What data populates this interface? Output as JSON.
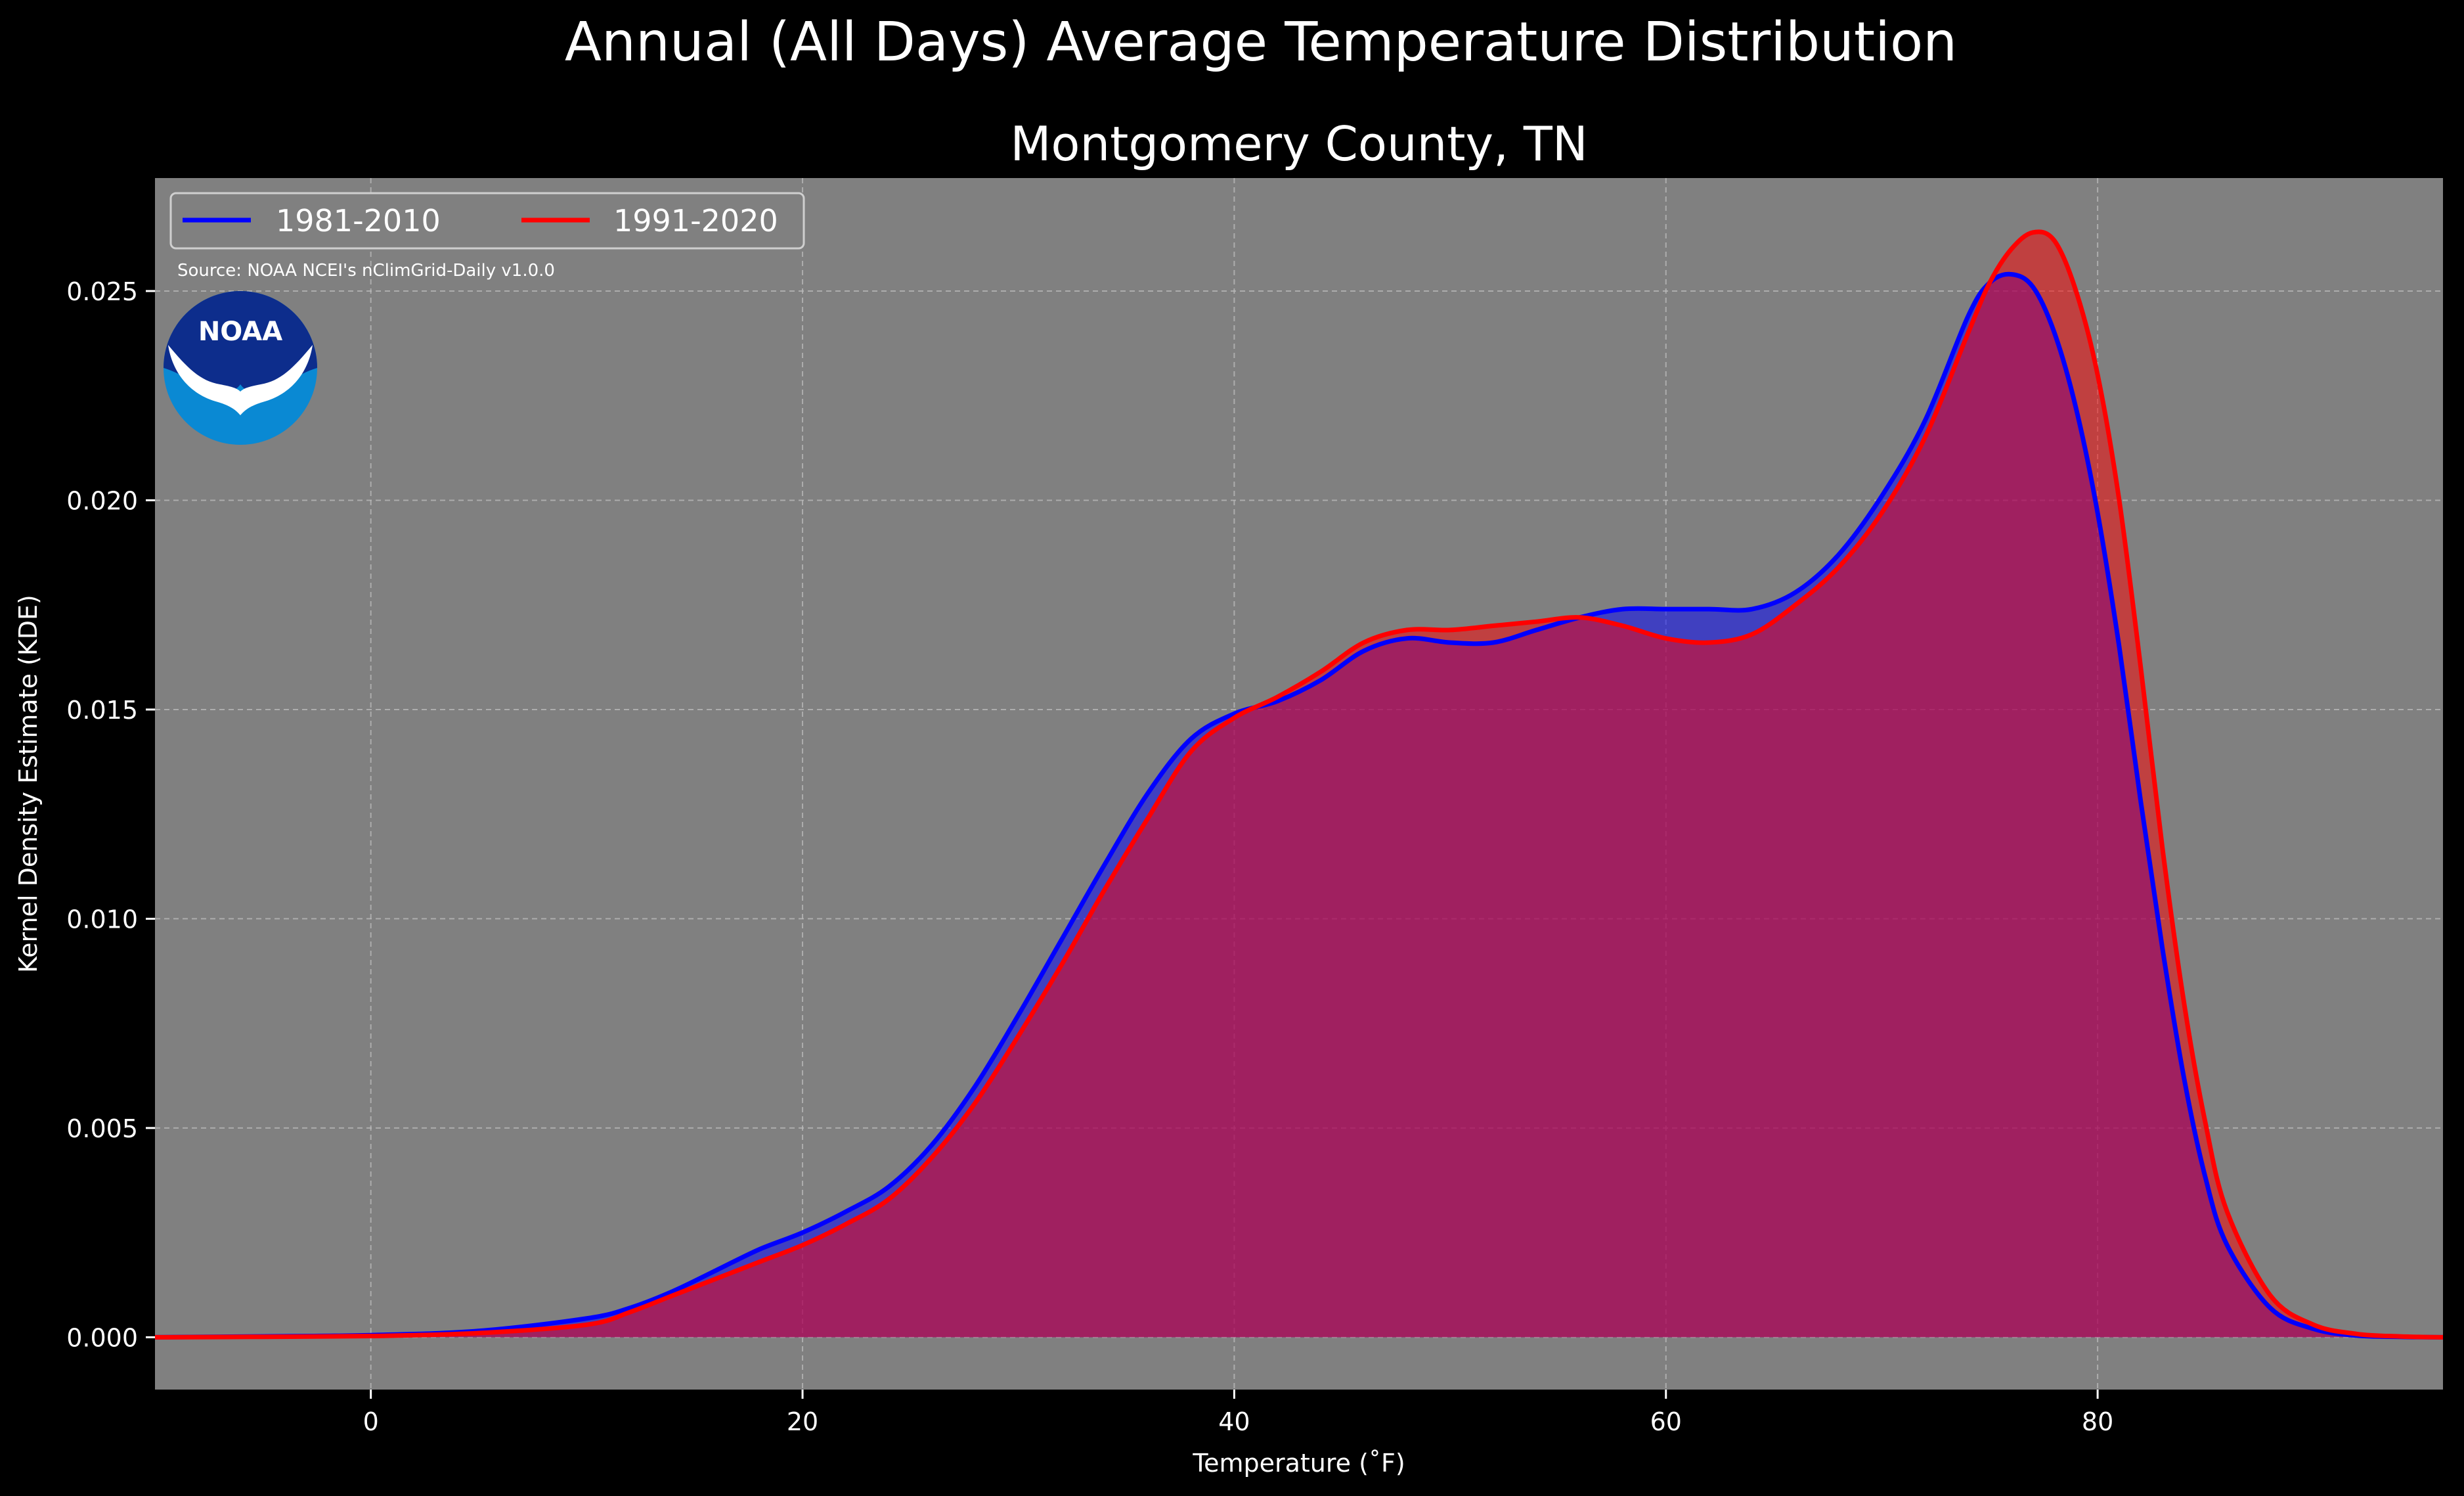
{
  "colors": {
    "background": "#000000",
    "plot_bg": "#808080",
    "series_1981": "#0000ff",
    "series_1991": "#ff0000"
  },
  "logo": {
    "text": "NOAA"
  },
  "chart_data": {
    "type": "area",
    "suptitle": "Annual (All Days) Average Temperature Distribution",
    "title": "Montgomery County, TN",
    "xlabel": "Temperature (˚F)",
    "ylabel": "Kernel Density Estimate (KDE)",
    "source": "Source: NOAA NCEI's nClimGrid-Daily v1.0.0",
    "xlim": [
      -10,
      96
    ],
    "ylim": [
      -0.00125,
      0.0277
    ],
    "x_ticks": [
      0,
      20,
      40,
      60,
      80
    ],
    "x_tick_labels": [
      "0",
      "20",
      "40",
      "60",
      "80"
    ],
    "y_ticks": [
      0.0,
      0.005,
      0.01,
      0.015,
      0.02,
      0.025
    ],
    "y_tick_labels": [
      "0.000",
      "0.005",
      "0.010",
      "0.015",
      "0.020",
      "0.025"
    ],
    "grid": true,
    "legend_position": "top-left",
    "series": [
      {
        "name": "1981-2010",
        "color": "#0000ff",
        "x": [
          -10,
          -5,
          0,
          5,
          10,
          12,
          14,
          16,
          18,
          20,
          22,
          24,
          26,
          28,
          30,
          32,
          34,
          36,
          38,
          40,
          42,
          44,
          46,
          48,
          50,
          52,
          54,
          56,
          58,
          60,
          62,
          64,
          66,
          68,
          70,
          72,
          74,
          75,
          76,
          77,
          78,
          79,
          80,
          81,
          82,
          83,
          84,
          85,
          86,
          88,
          90,
          92,
          94,
          96
        ],
        "y": [
          0.0,
          2e-05,
          5e-05,
          0.00015,
          0.00045,
          0.0007,
          0.0011,
          0.0016,
          0.0021,
          0.0025,
          0.003,
          0.0036,
          0.0046,
          0.006,
          0.0077,
          0.0095,
          0.0113,
          0.013,
          0.0143,
          0.0149,
          0.0152,
          0.0157,
          0.0164,
          0.0167,
          0.0166,
          0.0166,
          0.0169,
          0.0172,
          0.0174,
          0.0174,
          0.0174,
          0.0174,
          0.0178,
          0.0187,
          0.0201,
          0.0219,
          0.0244,
          0.0252,
          0.0254,
          0.0251,
          0.024,
          0.0222,
          0.0197,
          0.0165,
          0.0128,
          0.0093,
          0.0062,
          0.0038,
          0.0022,
          0.0007,
          0.0002,
          4e-05,
          1e-05,
          0.0
        ]
      },
      {
        "name": "1991-2020",
        "color": "#ff0000",
        "x": [
          -10,
          -5,
          0,
          5,
          10,
          12,
          14,
          16,
          18,
          20,
          22,
          24,
          26,
          28,
          30,
          32,
          34,
          36,
          38,
          40,
          42,
          44,
          46,
          48,
          50,
          52,
          54,
          56,
          58,
          60,
          62,
          64,
          66,
          68,
          70,
          72,
          74,
          75,
          76,
          77,
          78,
          79,
          80,
          81,
          82,
          83,
          84,
          85,
          86,
          88,
          90,
          92,
          94,
          96
        ],
        "y": [
          0.0,
          1e-05,
          3e-05,
          0.0001,
          0.0003,
          0.0006,
          0.001,
          0.0014,
          0.0018,
          0.0022,
          0.0027,
          0.0033,
          0.0043,
          0.0056,
          0.0072,
          0.0089,
          0.0107,
          0.0124,
          0.014,
          0.0148,
          0.0153,
          0.0159,
          0.0166,
          0.0169,
          0.0169,
          0.017,
          0.0171,
          0.0172,
          0.017,
          0.0167,
          0.0166,
          0.0168,
          0.0175,
          0.0184,
          0.0197,
          0.0215,
          0.024,
          0.0252,
          0.026,
          0.0264,
          0.0262,
          0.025,
          0.023,
          0.02,
          0.016,
          0.0117,
          0.008,
          0.0051,
          0.003,
          0.001,
          0.0003,
          8e-05,
          2e-05,
          0.0
        ]
      }
    ]
  }
}
